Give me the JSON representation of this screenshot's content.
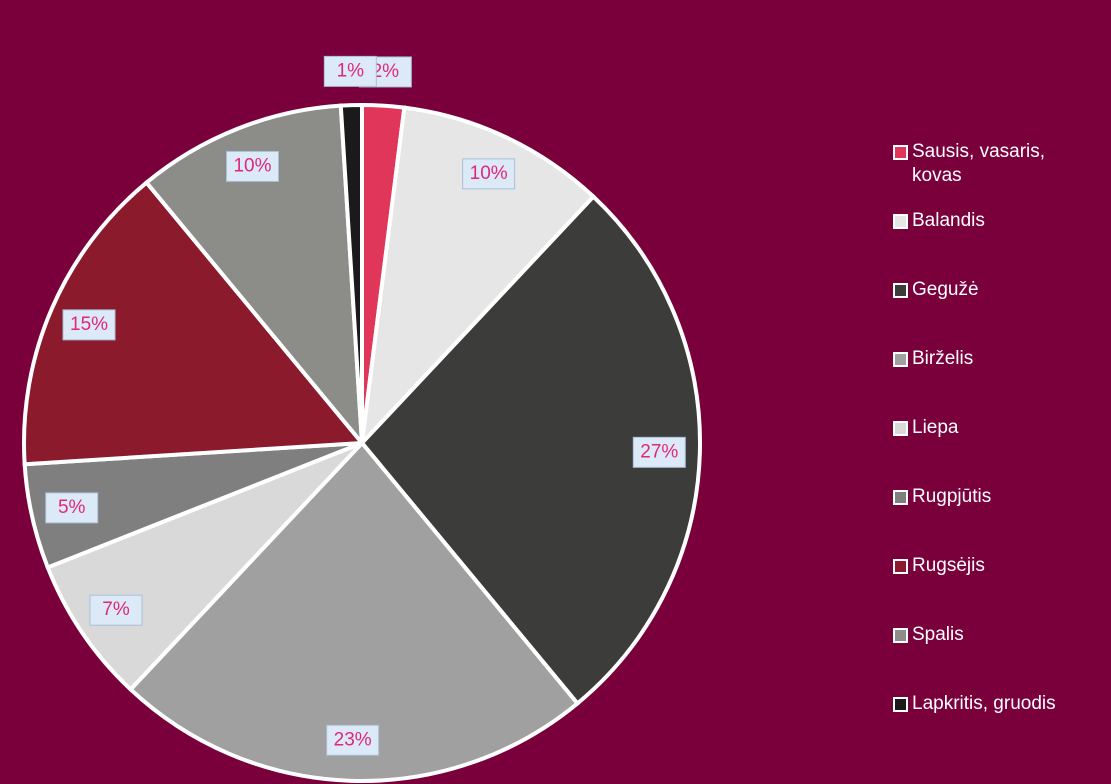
{
  "chart_data": {
    "type": "pie",
    "categories": [
      "Sausis, vasaris, kovas",
      "Balandis",
      "Gegužė",
      "Birželis",
      "Liepa",
      "Rugpjūtis",
      "Rugsėjis",
      "Spalis",
      "Lapkritis, gruodis"
    ],
    "values": [
      2,
      10,
      27,
      23,
      7,
      5,
      15,
      10,
      1
    ],
    "value_labels": [
      "2%",
      "10%",
      "27%",
      "23%",
      "7%",
      "5%",
      "15%",
      "10%",
      "1%"
    ],
    "colors": [
      "#e0365a",
      "#e6e6e6",
      "#3c3c3a",
      "#a0a0a0",
      "#d9d9d9",
      "#7f7f7f",
      "#8b1a2d",
      "#8c8c88",
      "#1a1a1a"
    ]
  }
}
